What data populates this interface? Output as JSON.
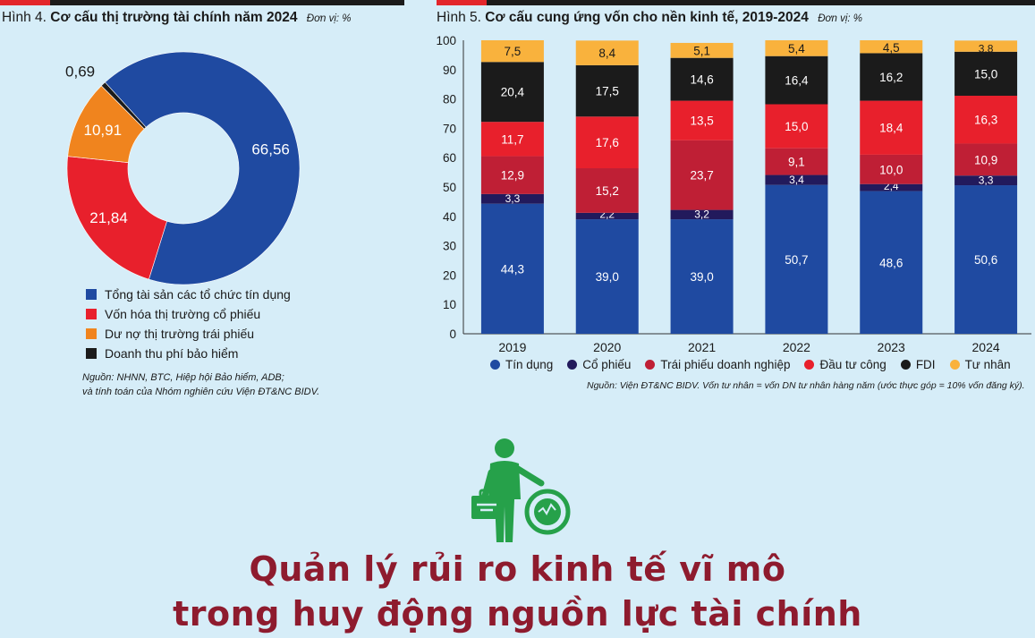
{
  "colors": {
    "blue": "#1f4aa1",
    "navy": "#221a5c",
    "darkred": "#bf1f35",
    "red": "#e8202c",
    "orange": "#f0841e",
    "black": "#1b1b1b",
    "yellow": "#f9b23d",
    "green": "#26a14a",
    "headline": "#8e1b2e"
  },
  "fig4": {
    "label": "Hình 4.",
    "title": "Cơ cấu thị trường tài chính năm 2024",
    "unit": "Đơn vị: %",
    "source_line1": "Nguồn: NHNN, BTC, Hiệp hội Bảo hiểm, ADB;",
    "source_line2": "và tính toán của Nhóm nghiên cứu Viện ĐT&NC BIDV."
  },
  "fig5": {
    "label": "Hình 5.",
    "title": "Cơ cấu cung ứng vốn cho nền kinh tế, 2019-2024",
    "unit": "Đơn vị: %",
    "source": "Nguồn: Viện ĐT&NC BIDV. Vốn tư nhân = vốn DN tư nhân hàng năm (ước thực góp = 10% vốn đăng ký)."
  },
  "headline": {
    "line1": "Quản lý rủi ro kinh tế vĩ mô",
    "line2": "trong huy động nguồn lực tài chính"
  },
  "chart_data": [
    {
      "type": "pie",
      "title": "Cơ cấu thị trường tài chính năm 2024",
      "unit": "%",
      "donut": true,
      "slices": [
        {
          "name": "Tổng tài sản các tổ chức tín dụng",
          "value": 66.56,
          "label": "66,56",
          "color": "#1f4aa1"
        },
        {
          "name": "Vốn hóa thị trường cổ phiếu",
          "value": 21.84,
          "label": "21,84",
          "color": "#e8202c"
        },
        {
          "name": "Dư nợ thị trường trái phiếu",
          "value": 10.91,
          "label": "10,91",
          "color": "#f0841e"
        },
        {
          "name": "Doanh thu phí bảo hiểm",
          "value": 0.69,
          "label": "0,69",
          "color": "#1b1b1b"
        }
      ]
    },
    {
      "type": "bar",
      "stacked": true,
      "title": "Cơ cấu cung ứng vốn cho nền kinh tế, 2019-2024",
      "unit": "%",
      "categories": [
        "2019",
        "2020",
        "2021",
        "2022",
        "2023",
        "2024"
      ],
      "ylim": [
        0,
        100
      ],
      "yticks": [
        0,
        10,
        20,
        30,
        40,
        50,
        60,
        70,
        80,
        90,
        100
      ],
      "series": [
        {
          "name": "Tín dụng",
          "color": "#1f4aa1",
          "values": [
            44.3,
            39.0,
            39.0,
            50.7,
            48.6,
            50.6
          ],
          "labels": [
            "44,3",
            "39,0",
            "39,0",
            "50,7",
            "48,6",
            "50,6"
          ]
        },
        {
          "name": "Cổ phiếu",
          "color": "#221a5c",
          "values": [
            3.3,
            2.2,
            3.2,
            3.4,
            2.4,
            3.3
          ],
          "labels": [
            "3,3",
            "2,2",
            "3,2",
            "3,4",
            "2,4",
            "3,3"
          ]
        },
        {
          "name": "Trái phiếu doanh nghiệp",
          "color": "#bf1f35",
          "values": [
            12.9,
            15.2,
            23.7,
            9.1,
            10.0,
            10.9
          ],
          "labels": [
            "12,9",
            "15,2",
            "23,7",
            "9,1",
            "10,0",
            "10,9"
          ]
        },
        {
          "name": "Đầu tư công",
          "color": "#e8202c",
          "values": [
            11.7,
            17.6,
            13.5,
            15.0,
            18.4,
            16.3
          ],
          "labels": [
            "11,7",
            "17,6",
            "13,5",
            "15,0",
            "18,4",
            "16,3"
          ]
        },
        {
          "name": "FDI",
          "color": "#1b1b1b",
          "values": [
            20.4,
            17.5,
            14.6,
            16.4,
            16.2,
            15.0
          ],
          "labels": [
            "20,4",
            "17,5",
            "14,6",
            "16,4",
            "16,2",
            "15,0"
          ]
        },
        {
          "name": "Tư nhân",
          "color": "#f9b23d",
          "values": [
            7.5,
            8.4,
            5.1,
            5.4,
            4.5,
            3.8
          ],
          "labels": [
            "7,5",
            "8,4",
            "5,1",
            "5,4",
            "4,5",
            "3,8"
          ]
        }
      ]
    }
  ]
}
